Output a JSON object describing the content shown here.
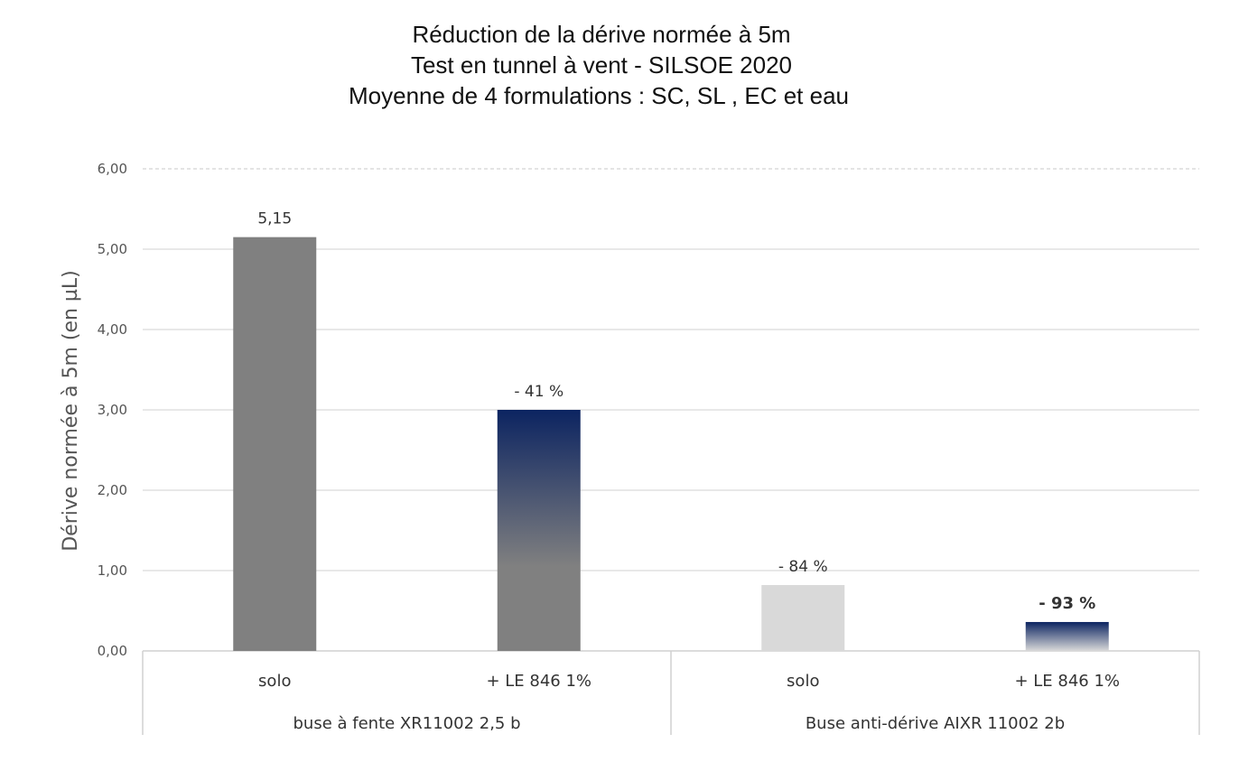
{
  "chart_data": {
    "type": "bar",
    "title": [
      "Réduction de la dérive normée à 5m",
      "Test en tunnel à vent - SILSOE 2020",
      "Moyenne de 4 formulations : SC, SL , EC et eau"
    ],
    "ylabel": "Dérive normée à 5m (en µL)",
    "xlabel": "",
    "ylim": [
      0,
      6
    ],
    "yticks": [
      "0,00",
      "1,00",
      "2,00",
      "3,00",
      "4,00",
      "5,00",
      "6,00"
    ],
    "grid": true,
    "groups": [
      {
        "label": "buse à fente XR11002 2,5 b",
        "bars": [
          {
            "category": "solo",
            "value": 5.15,
            "label": "5,15",
            "color": "#808080",
            "gradient": false
          },
          {
            "category": "+ LE 846 1%",
            "value": 3.0,
            "label": "- 41 %",
            "color": "#808080",
            "gradient_top": "#0c2461",
            "gradient": true
          }
        ]
      },
      {
        "label": "Buse anti-dérive AIXR 11002 2b",
        "bars": [
          {
            "category": "solo",
            "value": 0.82,
            "label": "- 84 %",
            "color": "#d9d9d9",
            "gradient": false
          },
          {
            "category": "+ LE 846 1%",
            "value": 0.36,
            "label": "- 93 %",
            "color": "#d9d9d9",
            "gradient_top": "#0c2461",
            "gradient": true,
            "label_bold": true
          }
        ]
      }
    ]
  }
}
